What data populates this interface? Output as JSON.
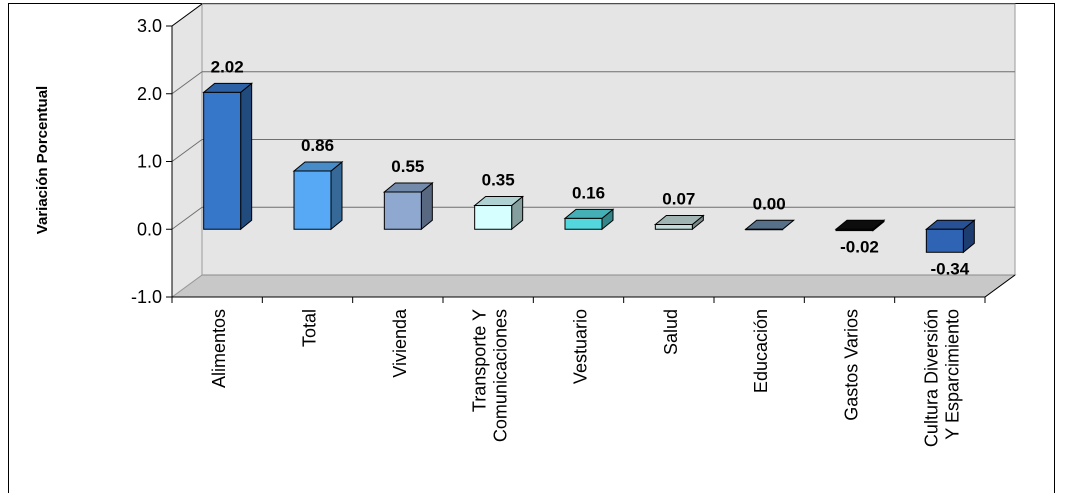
{
  "chart_data": {
    "type": "bar",
    "ylabel": "Variación Porcentual",
    "xlabel": "",
    "title": "",
    "ylim": [
      -1.0,
      3.0
    ],
    "yticks": [
      "3.0",
      "2.0",
      "1.0",
      "0.0",
      "-1.0"
    ],
    "grid": true,
    "categories": [
      [
        "Alimentos"
      ],
      [
        "Total"
      ],
      [
        "Vivienda"
      ],
      [
        "Transporte Y",
        "Comunicaciones"
      ],
      [
        "Vestuario"
      ],
      [
        "Salud"
      ],
      [
        "Educación"
      ],
      [
        "Gastos Varios"
      ],
      [
        "Cultura Diversión",
        "Y Esparcimiento"
      ]
    ],
    "values": [
      2.02,
      0.86,
      0.55,
      0.35,
      0.16,
      0.07,
      0.0,
      -0.02,
      -0.34
    ],
    "data_labels": [
      "2.02",
      "0.86",
      "0.55",
      "0.35",
      "0.16",
      "0.07",
      "0.00",
      "-0.02",
      "-0.34"
    ],
    "colors": [
      "#3677c9",
      "#57a9f5",
      "#8ea8d0",
      "#d6ffff",
      "#53d6dc",
      "#c4dcdc",
      "#6a88a8",
      "#101010",
      "#2f63b4"
    ]
  }
}
